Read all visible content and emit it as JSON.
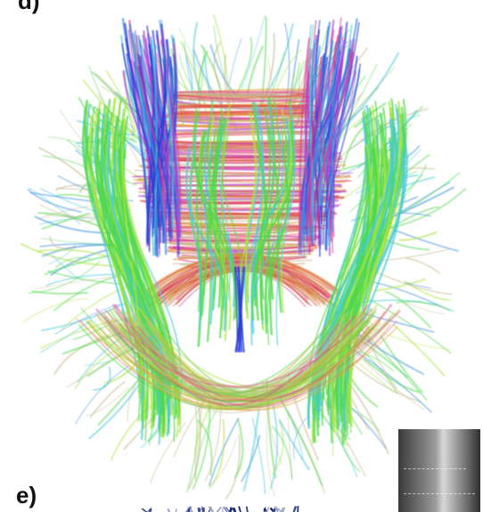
{
  "panels": {
    "d_label": "d)",
    "e_label": "e)"
  },
  "image": {
    "subject": "brain-tractography",
    "background": "#ffffff",
    "palette": [
      "#2a3fd6",
      "#3a8fe0",
      "#46c9d8",
      "#4fd84a",
      "#a8e43c",
      "#e03c8c",
      "#b23cd6",
      "#e04a3c",
      "#e0a03c",
      "#c8b890"
    ]
  }
}
